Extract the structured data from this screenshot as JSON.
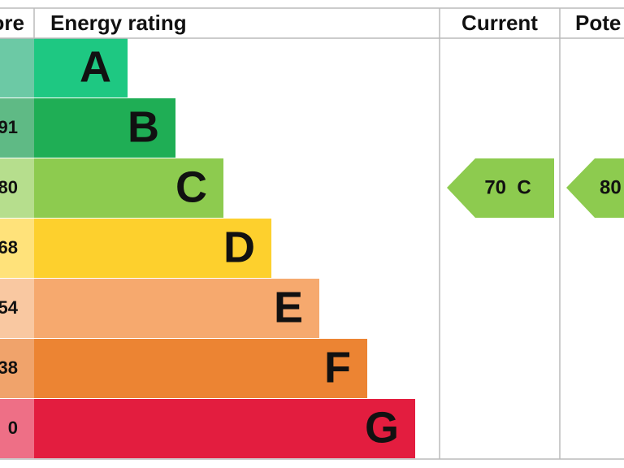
{
  "header": {
    "score": "ore",
    "rating": "Energy rating",
    "current": "Current",
    "potential": "Pote"
  },
  "rows": [
    {
      "score": "",
      "letter": "A"
    },
    {
      "score": "91",
      "letter": "B"
    },
    {
      "score": "80",
      "letter": "C"
    },
    {
      "score": "68",
      "letter": "D"
    },
    {
      "score": "54",
      "letter": "E"
    },
    {
      "score": "38",
      "letter": "F"
    },
    {
      "score": "0",
      "letter": "G"
    }
  ],
  "current": "70  C",
  "potential": "80"
}
